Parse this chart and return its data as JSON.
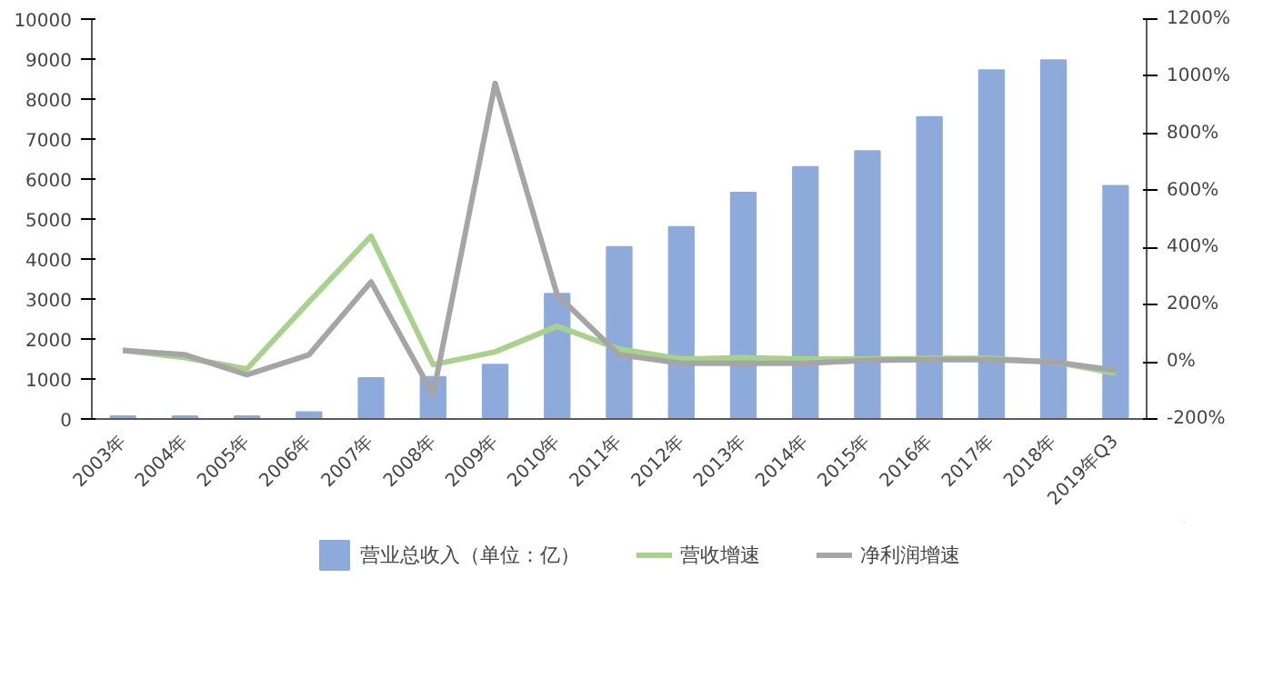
{
  "chart_data": {
    "type": "bar",
    "categories": [
      "2003年",
      "2004年",
      "2005年",
      "2006年",
      "2007年",
      "2008年",
      "2009年",
      "2010年",
      "2011年",
      "2012年",
      "2013年",
      "2014年",
      "2015年",
      "2016年",
      "2017年",
      "2018年",
      "2019年Q3"
    ],
    "series": [
      {
        "name": "营业总收入（单位：亿）",
        "color": "#8eaadb",
        "values": [
          70,
          70,
          70,
          170,
          1020,
          1050,
          1360,
          3130,
          4300,
          4800,
          5660,
          6300,
          6700,
          7550,
          8720,
          8970,
          5830
        ]
      },
      {
        "name": "营收增速",
        "type": "line",
        "axis": "y2",
        "color": "#a9d18e",
        "values": [
          40,
          15,
          -25,
          210,
          440,
          -10,
          35,
          125,
          45,
          10,
          15,
          10,
          10,
          12,
          12,
          0,
          -40
        ]
      },
      {
        "name": "净利润增速",
        "type": "line",
        "axis": "y2",
        "color": "#a5a5a5",
        "values": [
          40,
          25,
          -45,
          25,
          280,
          -115,
          975,
          235,
          25,
          -5,
          -5,
          -5,
          5,
          8,
          8,
          0,
          -30
        ]
      }
    ],
    "ylim": [
      0,
      10000
    ],
    "yticks": [
      0,
      1000,
      2000,
      3000,
      4000,
      5000,
      6000,
      7000,
      8000,
      9000,
      10000
    ],
    "y2lim": [
      -200,
      1200
    ],
    "y2ticks": [
      {
        "value": -200,
        "label": "-200%"
      },
      {
        "value": 0,
        "label": "0%"
      },
      {
        "value": 200,
        "label": "200%"
      },
      {
        "value": 400,
        "label": "400%"
      },
      {
        "value": 600,
        "label": "600%"
      },
      {
        "value": 800,
        "label": "800%"
      },
      {
        "value": 1000,
        "label": "1000%"
      },
      {
        "value": 1200,
        "label": "1200%"
      }
    ],
    "grid": false,
    "legend": "bottom"
  }
}
